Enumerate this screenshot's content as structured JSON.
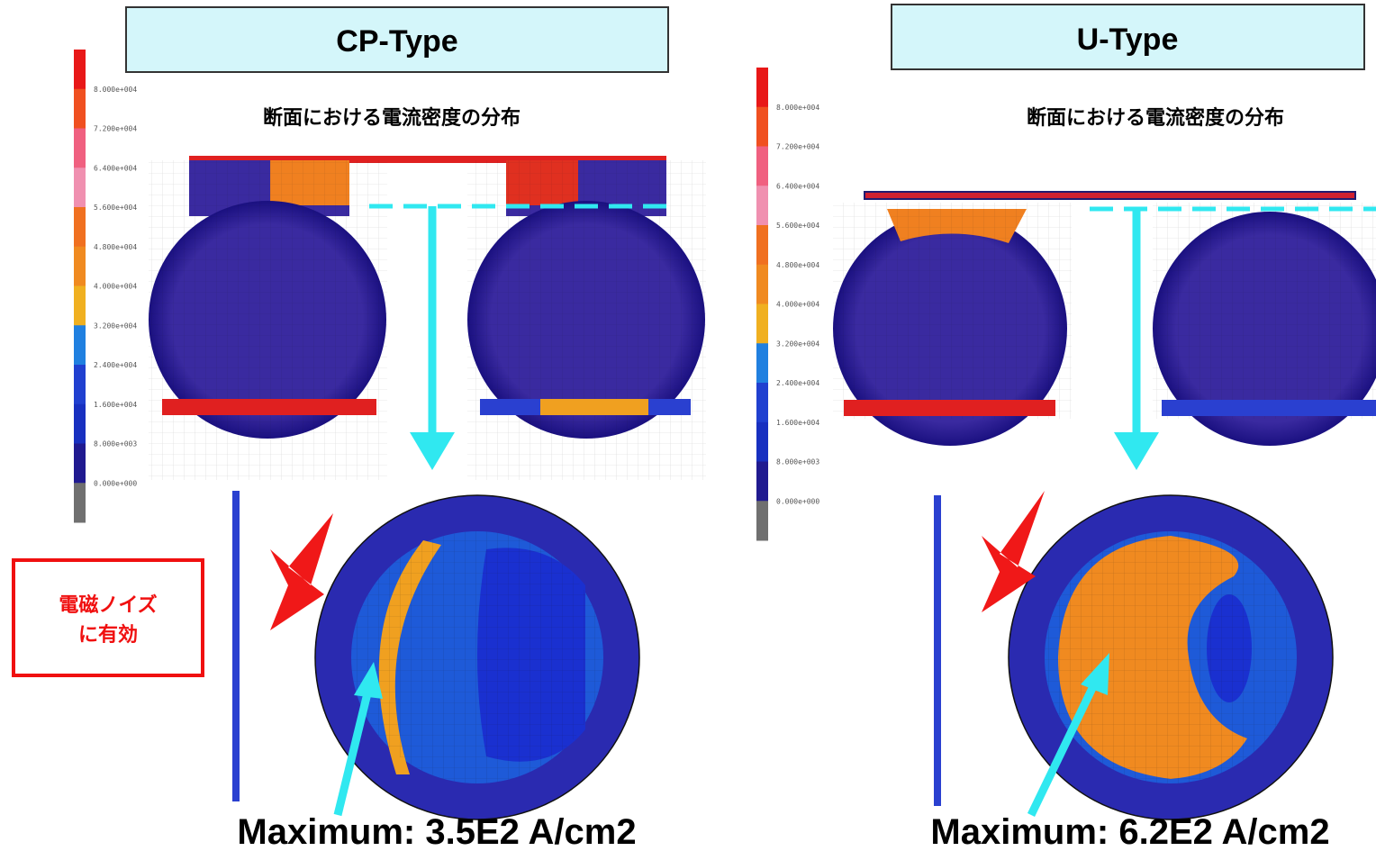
{
  "panels": [
    {
      "title": "CP-Type",
      "subtitle": "断面における電流密度の分布",
      "legend_labels": [
        "8.000e+004",
        "7.200e+004",
        "6.400e+004",
        "5.600e+004",
        "4.800e+004",
        "4.000e+004",
        "3.200e+004",
        "2.400e+004",
        "1.600e+004",
        "8.000e+003",
        "0.000e+000"
      ],
      "maximum": "Maximum: 3.5E2 A/cm2"
    },
    {
      "title": "U-Type",
      "subtitle": "断面における電流密度の分布",
      "legend_labels": [
        "8.000e+004",
        "7.200e+004",
        "6.400e+004",
        "5.600e+004",
        "4.800e+004",
        "4.000e+004",
        "3.200e+004",
        "2.400e+004",
        "1.600e+004",
        "8.000e+003",
        "0.000e+000"
      ],
      "maximum": "Maximum: 6.2E2 A/cm2"
    }
  ],
  "callout": {
    "lines": [
      "電磁ノイズ",
      "に有効"
    ]
  }
}
